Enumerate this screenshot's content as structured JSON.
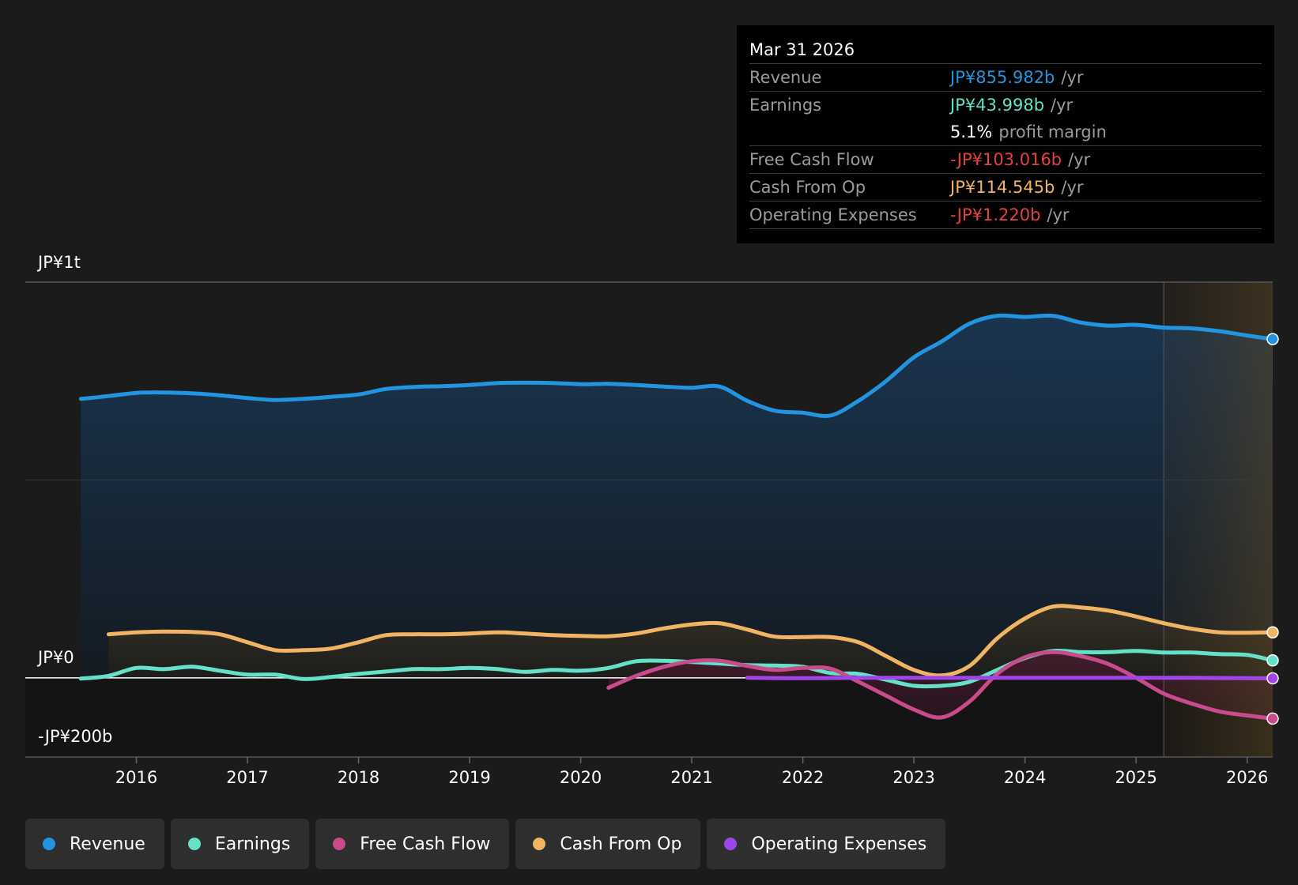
{
  "tooltip": {
    "date": "Mar 31 2026",
    "rows": [
      {
        "label": "Revenue",
        "value": "JP¥855.982b",
        "unit": "/yr",
        "color": "#2394df"
      },
      {
        "label": "Earnings",
        "value": "JP¥43.998b",
        "unit": "/yr",
        "color": "#64e1c8"
      },
      {
        "label": "",
        "value": "5.1%",
        "unit": "profit margin",
        "color": "#ffffff"
      },
      {
        "label": "Free Cash Flow",
        "value": "-JP¥103.016b",
        "unit": "/yr",
        "color": "#e64141"
      },
      {
        "label": "Cash From Op",
        "value": "JP¥114.545b",
        "unit": "/yr",
        "color": "#f0b464"
      },
      {
        "label": "Operating Expenses",
        "value": "-JP¥1.220b",
        "unit": "/yr",
        "color": "#e64141"
      }
    ]
  },
  "legend": [
    {
      "label": "Revenue",
      "color": "#2394df"
    },
    {
      "label": "Earnings",
      "color": "#64e1c8"
    },
    {
      "label": "Free Cash Flow",
      "color": "#c84b8c"
    },
    {
      "label": "Cash From Op",
      "color": "#f0b464"
    },
    {
      "label": "Operating Expenses",
      "color": "#a046e6"
    }
  ],
  "chart_data": {
    "type": "area",
    "y_labels": {
      "top": "JP¥1t",
      "zero": "JP¥0",
      "bottom": "-JP¥200b"
    },
    "ylim": [
      -200,
      1000
    ],
    "xlim": [
      2015.0,
      2026.23
    ],
    "x_ticks": [
      2016,
      2017,
      2018,
      2019,
      2020,
      2021,
      2022,
      2023,
      2024,
      2025,
      2026
    ],
    "forecast_start": 2025.25,
    "grid": true,
    "series": [
      {
        "name": "Revenue",
        "color": "#2394df",
        "points": [
          [
            2015.5,
            705
          ],
          [
            2015.75,
            712
          ],
          [
            2016.0,
            720
          ],
          [
            2016.25,
            721
          ],
          [
            2016.5,
            719
          ],
          [
            2016.75,
            714
          ],
          [
            2017.0,
            707
          ],
          [
            2017.25,
            702
          ],
          [
            2017.5,
            705
          ],
          [
            2017.75,
            710
          ],
          [
            2018.0,
            716
          ],
          [
            2018.25,
            730
          ],
          [
            2018.5,
            735
          ],
          [
            2018.75,
            737
          ],
          [
            2019.0,
            740
          ],
          [
            2019.25,
            745
          ],
          [
            2019.5,
            746
          ],
          [
            2019.75,
            745
          ],
          [
            2020.0,
            742
          ],
          [
            2020.25,
            743
          ],
          [
            2020.5,
            740
          ],
          [
            2020.75,
            736
          ],
          [
            2021.0,
            733
          ],
          [
            2021.25,
            736
          ],
          [
            2021.5,
            700
          ],
          [
            2021.75,
            675
          ],
          [
            2022.0,
            670
          ],
          [
            2022.25,
            663
          ],
          [
            2022.5,
            700
          ],
          [
            2022.75,
            750
          ],
          [
            2023.0,
            810
          ],
          [
            2023.25,
            850
          ],
          [
            2023.5,
            895
          ],
          [
            2023.75,
            915
          ],
          [
            2024.0,
            912
          ],
          [
            2024.25,
            915
          ],
          [
            2024.5,
            898
          ],
          [
            2024.75,
            890
          ],
          [
            2025.0,
            892
          ],
          [
            2025.25,
            885
          ],
          [
            2025.5,
            883
          ],
          [
            2025.75,
            876
          ],
          [
            2026.0,
            865
          ],
          [
            2026.23,
            856
          ]
        ]
      },
      {
        "name": "Cash From Op",
        "color": "#f0b464",
        "points": [
          [
            2015.75,
            110
          ],
          [
            2016.0,
            115
          ],
          [
            2016.25,
            117
          ],
          [
            2016.5,
            116
          ],
          [
            2016.75,
            110
          ],
          [
            2017.0,
            90
          ],
          [
            2017.25,
            70
          ],
          [
            2017.5,
            70
          ],
          [
            2017.75,
            74
          ],
          [
            2018.0,
            90
          ],
          [
            2018.25,
            108
          ],
          [
            2018.5,
            110
          ],
          [
            2018.75,
            110
          ],
          [
            2019.0,
            112
          ],
          [
            2019.25,
            115
          ],
          [
            2019.5,
            112
          ],
          [
            2019.75,
            108
          ],
          [
            2020.0,
            106
          ],
          [
            2020.25,
            105
          ],
          [
            2020.5,
            112
          ],
          [
            2020.75,
            125
          ],
          [
            2021.0,
            135
          ],
          [
            2021.25,
            138
          ],
          [
            2021.5,
            122
          ],
          [
            2021.75,
            104
          ],
          [
            2022.0,
            103
          ],
          [
            2022.25,
            103
          ],
          [
            2022.5,
            90
          ],
          [
            2022.75,
            55
          ],
          [
            2023.0,
            20
          ],
          [
            2023.25,
            6
          ],
          [
            2023.5,
            30
          ],
          [
            2023.75,
            100
          ],
          [
            2024.0,
            150
          ],
          [
            2024.25,
            180
          ],
          [
            2024.5,
            178
          ],
          [
            2024.75,
            170
          ],
          [
            2025.0,
            155
          ],
          [
            2025.25,
            138
          ],
          [
            2025.5,
            124
          ],
          [
            2025.75,
            115
          ],
          [
            2026.0,
            114
          ],
          [
            2026.23,
            115
          ]
        ]
      },
      {
        "name": "Earnings",
        "color": "#64e1c8",
        "points": [
          [
            2015.5,
            -2
          ],
          [
            2015.75,
            5
          ],
          [
            2016.0,
            25
          ],
          [
            2016.25,
            22
          ],
          [
            2016.5,
            28
          ],
          [
            2016.75,
            18
          ],
          [
            2017.0,
            8
          ],
          [
            2017.25,
            8
          ],
          [
            2017.5,
            -3
          ],
          [
            2017.75,
            2
          ],
          [
            2018.0,
            10
          ],
          [
            2018.25,
            16
          ],
          [
            2018.5,
            22
          ],
          [
            2018.75,
            22
          ],
          [
            2019.0,
            25
          ],
          [
            2019.25,
            22
          ],
          [
            2019.5,
            15
          ],
          [
            2019.75,
            20
          ],
          [
            2020.0,
            18
          ],
          [
            2020.25,
            25
          ],
          [
            2020.5,
            42
          ],
          [
            2020.75,
            43
          ],
          [
            2021.0,
            40
          ],
          [
            2021.25,
            36
          ],
          [
            2021.5,
            32
          ],
          [
            2021.75,
            31
          ],
          [
            2022.0,
            28
          ],
          [
            2022.25,
            12
          ],
          [
            2022.5,
            10
          ],
          [
            2022.75,
            -5
          ],
          [
            2023.0,
            -20
          ],
          [
            2023.25,
            -20
          ],
          [
            2023.5,
            -10
          ],
          [
            2023.75,
            20
          ],
          [
            2024.0,
            50
          ],
          [
            2024.25,
            68
          ],
          [
            2024.5,
            65
          ],
          [
            2024.75,
            65
          ],
          [
            2025.0,
            68
          ],
          [
            2025.25,
            64
          ],
          [
            2025.5,
            64
          ],
          [
            2025.75,
            60
          ],
          [
            2026.0,
            58
          ],
          [
            2026.23,
            44
          ]
        ]
      },
      {
        "name": "Free Cash Flow",
        "color": "#c84b8c",
        "points": [
          [
            2020.25,
            -25
          ],
          [
            2020.5,
            5
          ],
          [
            2020.75,
            28
          ],
          [
            2021.0,
            42
          ],
          [
            2021.25,
            43
          ],
          [
            2021.5,
            30
          ],
          [
            2021.75,
            20
          ],
          [
            2022.0,
            25
          ],
          [
            2022.25,
            23
          ],
          [
            2022.5,
            -10
          ],
          [
            2022.75,
            -45
          ],
          [
            2023.0,
            -80
          ],
          [
            2023.25,
            -100
          ],
          [
            2023.5,
            -60
          ],
          [
            2023.75,
            10
          ],
          [
            2024.0,
            52
          ],
          [
            2024.25,
            65
          ],
          [
            2024.5,
            55
          ],
          [
            2024.75,
            35
          ],
          [
            2025.0,
            0
          ],
          [
            2025.25,
            -40
          ],
          [
            2025.5,
            -65
          ],
          [
            2025.75,
            -85
          ],
          [
            2026.0,
            -95
          ],
          [
            2026.23,
            -103
          ]
        ]
      },
      {
        "name": "Operating Expenses",
        "color": "#a046e6",
        "points": [
          [
            2021.5,
            0
          ],
          [
            2022.0,
            -1
          ],
          [
            2022.5,
            0
          ],
          [
            2023.0,
            0
          ],
          [
            2023.5,
            0
          ],
          [
            2024.0,
            0
          ],
          [
            2024.5,
            0
          ],
          [
            2025.0,
            0
          ],
          [
            2025.5,
            0
          ],
          [
            2026.0,
            -1
          ],
          [
            2026.23,
            -1.22
          ]
        ]
      }
    ]
  }
}
